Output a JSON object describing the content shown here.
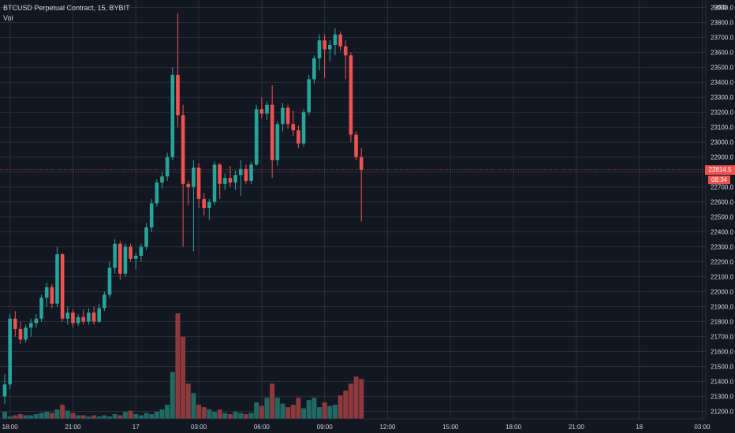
{
  "header": {
    "symbol_line": "BTCUSD Perpetual Contract, 15, BYBIT",
    "volume_label": "Vol",
    "currency": "USD"
  },
  "last_price": {
    "value": "22814.5",
    "countdown": "08:34"
  },
  "colors": {
    "background": "#131722",
    "grid": "#2a2e39",
    "up": "#26a69a",
    "down": "#ef5350",
    "up_volume": "#1f6b64",
    "down_volume": "#8e3a3d",
    "text": "#d1d4dc"
  },
  "chart_data": {
    "type": "candlestick",
    "interval": "15",
    "ylim": [
      21150,
      23950
    ],
    "y_ticks": [
      21200,
      21300,
      21400,
      21500,
      21600,
      21700,
      21800,
      21900,
      22000,
      22100,
      22200,
      22300,
      22400,
      22500,
      22600,
      22700,
      22800,
      22900,
      23000,
      23100,
      23200,
      23300,
      23400,
      23500,
      23600,
      23700,
      23800,
      23900
    ],
    "x_ticks": [
      "18:00",
      "21:00",
      "17",
      "03:00",
      "06:00",
      "09:00",
      "12:00",
      "15:00",
      "18:00",
      "21:00",
      "18",
      "03:00"
    ],
    "x_tick_index": [
      1,
      13,
      25,
      37,
      49,
      61,
      73,
      85,
      97,
      109,
      121,
      133
    ],
    "candles": [
      [
        21300,
        21450,
        21250,
        21380
      ],
      [
        21380,
        21850,
        21350,
        21820
      ],
      [
        21820,
        21870,
        21700,
        21750
      ],
      [
        21750,
        21800,
        21650,
        21680
      ],
      [
        21680,
        21780,
        21660,
        21760
      ],
      [
        21760,
        21820,
        21700,
        21790
      ],
      [
        21790,
        21850,
        21760,
        21820
      ],
      [
        21820,
        21980,
        21800,
        21960
      ],
      [
        21960,
        22060,
        21900,
        22030
      ],
      [
        22030,
        22050,
        21890,
        21920
      ],
      [
        21920,
        22300,
        21900,
        22250
      ],
      [
        22250,
        22260,
        21800,
        21820
      ],
      [
        21820,
        21900,
        21780,
        21860
      ],
      [
        21860,
        21880,
        21760,
        21790
      ],
      [
        21790,
        21850,
        21770,
        21830
      ],
      [
        21830,
        21880,
        21780,
        21800
      ],
      [
        21800,
        21890,
        21780,
        21860
      ],
      [
        21860,
        21900,
        21780,
        21800
      ],
      [
        21800,
        21920,
        21790,
        21890
      ],
      [
        21890,
        22000,
        21870,
        21980
      ],
      [
        21980,
        22200,
        21960,
        22160
      ],
      [
        22160,
        22350,
        22120,
        22320
      ],
      [
        22320,
        22340,
        22080,
        22120
      ],
      [
        22120,
        22320,
        22100,
        22300
      ],
      [
        22300,
        22320,
        22200,
        22220
      ],
      [
        22220,
        22260,
        22150,
        22240
      ],
      [
        22240,
        22320,
        22200,
        22300
      ],
      [
        22300,
        22460,
        22280,
        22430
      ],
      [
        22430,
        22620,
        22400,
        22590
      ],
      [
        22590,
        22750,
        22570,
        22730
      ],
      [
        22730,
        22800,
        22690,
        22770
      ],
      [
        22770,
        22930,
        22740,
        22900
      ],
      [
        22900,
        23500,
        22880,
        23450
      ],
      [
        23450,
        23860,
        23100,
        23180
      ],
      [
        23180,
        23250,
        22300,
        22720
      ],
      [
        22720,
        22740,
        22580,
        22700
      ],
      [
        22700,
        22880,
        22270,
        22830
      ],
      [
        22830,
        22860,
        22560,
        22620
      ],
      [
        22620,
        22660,
        22510,
        22560
      ],
      [
        22560,
        22620,
        22480,
        22600
      ],
      [
        22600,
        22870,
        22580,
        22850
      ],
      [
        22850,
        22860,
        22620,
        22720
      ],
      [
        22720,
        22790,
        22680,
        22760
      ],
      [
        22760,
        22840,
        22700,
        22730
      ],
      [
        22730,
        22810,
        22680,
        22780
      ],
      [
        22780,
        22880,
        22640,
        22820
      ],
      [
        22820,
        22850,
        22720,
        22740
      ],
      [
        22740,
        22870,
        22720,
        22850
      ],
      [
        22850,
        23250,
        22840,
        23220
      ],
      [
        23220,
        23300,
        23160,
        23190
      ],
      [
        23190,
        23270,
        23150,
        23250
      ],
      [
        23250,
        23380,
        22760,
        22880
      ],
      [
        22880,
        23140,
        22840,
        23120
      ],
      [
        23120,
        23260,
        23070,
        23230
      ],
      [
        23230,
        23250,
        23090,
        23120
      ],
      [
        23120,
        23210,
        23040,
        23080
      ],
      [
        23080,
        23110,
        22960,
        22990
      ],
      [
        22990,
        23220,
        22970,
        23200
      ],
      [
        23200,
        23450,
        23180,
        23420
      ],
      [
        23420,
        23580,
        23390,
        23560
      ],
      [
        23560,
        23720,
        23480,
        23680
      ],
      [
        23680,
        23720,
        23430,
        23620
      ],
      [
        23620,
        23680,
        23540,
        23650
      ],
      [
        23650,
        23760,
        23580,
        23720
      ],
      [
        23720,
        23740,
        23610,
        23640
      ],
      [
        23640,
        23680,
        23420,
        23580
      ],
      [
        23580,
        23600,
        23000,
        23050
      ],
      [
        23050,
        23070,
        22880,
        22900
      ],
      [
        22900,
        22960,
        22470,
        22814.5
      ]
    ],
    "volumes": [
      6,
      2,
      3,
      4,
      3,
      3,
      4,
      5,
      6,
      5,
      8,
      12,
      7,
      5,
      3,
      3,
      2,
      3,
      2,
      3,
      2,
      4,
      3,
      6,
      7,
      4,
      3,
      5,
      4,
      6,
      8,
      12,
      40,
      90,
      70,
      30,
      22,
      12,
      10,
      8,
      6,
      8,
      5,
      4,
      6,
      5,
      4,
      5,
      14,
      11,
      18,
      30,
      18,
      13,
      10,
      12,
      18,
      9,
      16,
      18,
      10,
      14,
      11,
      12,
      20,
      24,
      30,
      36,
      34
    ],
    "xlabel": "",
    "ylabel": ""
  }
}
